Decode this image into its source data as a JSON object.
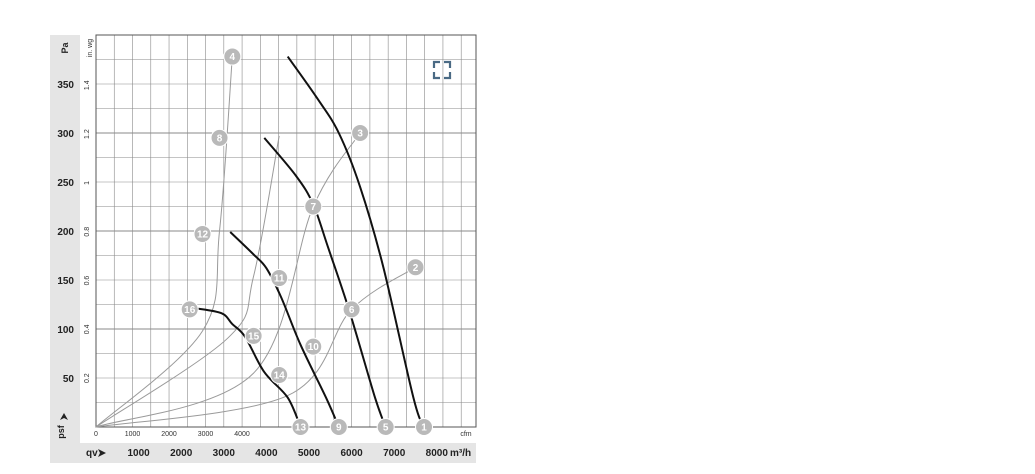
{
  "chart_data": {
    "type": "line",
    "axes": {
      "pa_label": "Pa",
      "inwg_label": "in. wg",
      "cfm_label": "cfm",
      "qv_label": "qv",
      "qv_unit": "m³/h",
      "psf_label": "psf",
      "y_pa_ticks": [
        "50",
        "100",
        "150",
        "200",
        "250",
        "300",
        "350"
      ],
      "y_inwg_ticks": [
        "0.2",
        "0.4",
        "0.6",
        "0.8",
        "1",
        "1.2",
        "1.4"
      ],
      "x_cfm_ticks": [
        "0",
        "1000",
        "2000",
        "3000",
        "4000"
      ],
      "x_qv_ticks": [
        "1000",
        "2000",
        "3000",
        "4000",
        "5000",
        "6000",
        "7000",
        "8000"
      ],
      "xlim_m3h": [
        0,
        8000
      ],
      "ylim_pa": [
        0,
        400
      ],
      "grid": true
    },
    "fan_curves": [
      {
        "x": [
          7700,
          7450,
          6750,
          6200,
          5700,
          5200,
          4500
        ],
        "y": [
          0,
          30,
          162,
          245,
          300,
          335,
          378
        ]
      },
      {
        "x": [
          6800,
          6550,
          5950,
          5450,
          5100,
          4700,
          3950
        ],
        "y": [
          0,
          30,
          118,
          183,
          227,
          256,
          295
        ]
      },
      {
        "x": [
          5700,
          5400,
          4800,
          4350,
          4000,
          3700,
          3150
        ],
        "y": [
          0,
          30,
          84,
          132,
          162,
          176,
          199
        ]
      },
      {
        "x": [
          4800,
          4500,
          3950,
          3500,
          3200,
          2950,
          2350
        ],
        "y": [
          0,
          30,
          56,
          92,
          105,
          116,
          121
        ]
      }
    ],
    "system_curves": [
      {
        "x": [
          0,
          4500,
          6000,
          7500
        ],
        "y": [
          0,
          32,
          120,
          163
        ]
      },
      {
        "x": [
          0,
          3700,
          5100,
          6200
        ],
        "y": [
          0,
          55,
          225,
          300
        ]
      },
      {
        "x": [
          0,
          3100,
          3700,
          4300
        ],
        "y": [
          0,
          91,
          154,
          297
        ]
      },
      {
        "x": [
          0,
          2500,
          2900,
          3200
        ],
        "y": [
          0,
          98,
          200,
          378
        ]
      }
    ],
    "points": [
      {
        "label": "1",
        "x": 7700,
        "y": 0
      },
      {
        "label": "2",
        "x": 7500,
        "y": 163
      },
      {
        "label": "3",
        "x": 6200,
        "y": 300
      },
      {
        "label": "4",
        "x": 3200,
        "y": 378
      },
      {
        "label": "5",
        "x": 6800,
        "y": 0
      },
      {
        "label": "6",
        "x": 6000,
        "y": 120
      },
      {
        "label": "7",
        "x": 5100,
        "y": 225
      },
      {
        "label": "8",
        "x": 2900,
        "y": 295
      },
      {
        "label": "9",
        "x": 5700,
        "y": 0
      },
      {
        "label": "10",
        "x": 5100,
        "y": 82
      },
      {
        "label": "11",
        "x": 4300,
        "y": 152
      },
      {
        "label": "12",
        "x": 2500,
        "y": 197
      },
      {
        "label": "13",
        "x": 4800,
        "y": 0
      },
      {
        "label": "14",
        "x": 4300,
        "y": 53
      },
      {
        "label": "15",
        "x": 3700,
        "y": 93
      },
      {
        "label": "16",
        "x": 2200,
        "y": 120
      }
    ]
  },
  "colors": {
    "background": "#ffffff",
    "plot_bg": "#ffffff",
    "grid": "#8a8a8a",
    "axis_strip": "#e5e5e5",
    "fan_curve": "#111111",
    "system_curve": "#9a9a9a",
    "point_fill": "#b9b9b9",
    "expand_icon": "#4a6a84"
  },
  "icons": {
    "expand": "expand-icon"
  }
}
